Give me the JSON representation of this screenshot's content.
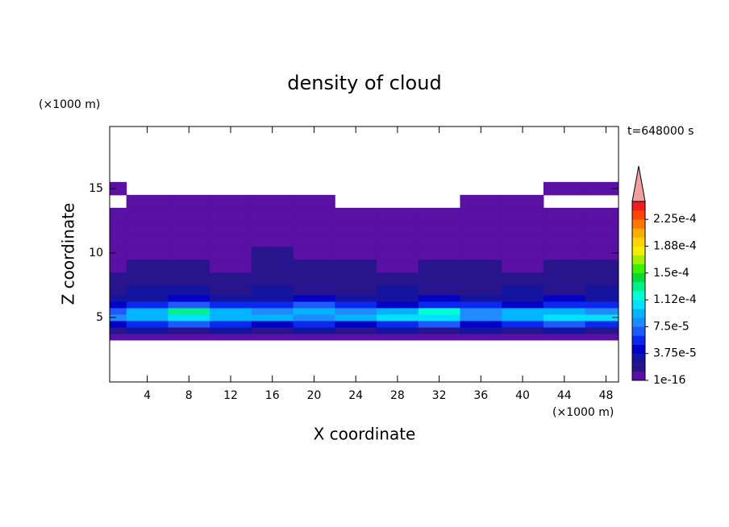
{
  "chart_data": {
    "type": "contour",
    "title": "density of cloud",
    "xlabel": "X coordinate",
    "ylabel": "Z coordinate",
    "x_unit": "(×1000 m)",
    "y_unit": "(×1000 m)",
    "time_label": "t=648000 s",
    "x": [
      0,
      4,
      8,
      12,
      16,
      20,
      24,
      28,
      32,
      36,
      40,
      44,
      48
    ],
    "z": [
      3.5,
      4,
      4.5,
      5,
      5.5,
      6,
      6.5,
      7,
      8,
      9,
      10,
      11,
      12,
      13,
      14,
      15
    ],
    "values": [
      [
        5e-06,
        5e-06,
        5e-06,
        5e-06,
        5e-06,
        5e-06,
        5e-06,
        5e-06,
        5e-06,
        5e-06,
        5e-06,
        5e-06,
        5e-06
      ],
      [
        1.8e-05,
        3e-05,
        1.8e-05,
        3e-05,
        1.8e-05,
        3e-05,
        1.8e-05,
        3e-05,
        1.8e-05,
        3e-05,
        1.8e-05,
        3e-05,
        1.8e-05
      ],
      [
        4.4e-05,
        5.6e-05,
        6.8e-05,
        5.6e-05,
        4.4e-05,
        5.6e-05,
        4.4e-05,
        5.6e-05,
        6.8e-05,
        4.4e-05,
        5.6e-05,
        6.8e-05,
        5.6e-05
      ],
      [
        8e-05,
        9.3e-05,
        0.000106,
        9.3e-05,
        9.3e-05,
        8e-05,
        9.3e-05,
        0.000106,
        0.000106,
        8e-05,
        9.3e-05,
        0.000106,
        0.000106
      ],
      [
        6.8e-05,
        9.3e-05,
        0.00013,
        9.3e-05,
        8e-05,
        9.3e-05,
        8e-05,
        9.3e-05,
        0.000118,
        8e-05,
        9.3e-05,
        9.3e-05,
        8e-05
      ],
      [
        4.4e-05,
        5.6e-05,
        6.8e-05,
        5.6e-05,
        5.6e-05,
        6.8e-05,
        5.6e-05,
        4.4e-05,
        5.6e-05,
        5.6e-05,
        4.4e-05,
        5.6e-05,
        5.6e-05
      ],
      [
        3e-05,
        3e-05,
        4.4e-05,
        3e-05,
        3e-05,
        4.4e-05,
        3e-05,
        3e-05,
        4.4e-05,
        3e-05,
        3e-05,
        4.4e-05,
        3e-05
      ],
      [
        1.8e-05,
        3e-05,
        3e-05,
        1.8e-05,
        3e-05,
        1.8e-05,
        1.8e-05,
        3e-05,
        1.8e-05,
        1.8e-05,
        3e-05,
        1.8e-05,
        3e-05
      ],
      [
        1.8e-05,
        1.8e-05,
        1.8e-05,
        1.8e-05,
        1.8e-05,
        1.8e-05,
        1.8e-05,
        1.8e-05,
        1.8e-05,
        1.8e-05,
        1.8e-05,
        1.8e-05,
        1.8e-05
      ],
      [
        5e-06,
        1.8e-05,
        1.8e-05,
        5e-06,
        1.8e-05,
        1.8e-05,
        1.8e-05,
        5e-06,
        1.8e-05,
        1.8e-05,
        5e-06,
        1.8e-05,
        1.8e-05
      ],
      [
        5e-06,
        5e-06,
        5e-06,
        5e-06,
        1.8e-05,
        5e-06,
        5e-06,
        5e-06,
        5e-06,
        5e-06,
        5e-06,
        5e-06,
        5e-06
      ],
      [
        5e-06,
        5e-06,
        5e-06,
        5e-06,
        5e-06,
        5e-06,
        5e-06,
        5e-06,
        5e-06,
        5e-06,
        5e-06,
        5e-06,
        5e-06
      ],
      [
        5e-06,
        5e-06,
        5e-06,
        5e-06,
        5e-06,
        5e-06,
        5e-06,
        5e-06,
        5e-06,
        5e-06,
        5e-06,
        5e-06,
        5e-06
      ],
      [
        5e-06,
        5e-06,
        5e-06,
        5e-06,
        5e-06,
        5e-06,
        5e-06,
        5e-06,
        5e-06,
        5e-06,
        5e-06,
        5e-06,
        5e-06
      ],
      [
        null,
        5e-06,
        5e-06,
        5e-06,
        5e-06,
        5e-06,
        null,
        null,
        null,
        5e-06,
        5e-06,
        null,
        null
      ],
      [
        5e-06,
        null,
        null,
        null,
        null,
        null,
        null,
        null,
        null,
        null,
        null,
        5e-06,
        5e-06
      ]
    ],
    "xlim": [
      0.4,
      49.2
    ],
    "ylim": [
      0,
      19.8
    ],
    "xticks": [
      4,
      8,
      12,
      16,
      20,
      24,
      28,
      32,
      36,
      40,
      44,
      48
    ],
    "yticks": [
      5,
      10,
      15
    ],
    "levels": [
      1e-16,
      1.25e-05,
      2.5e-05,
      3.75e-05,
      5e-05,
      6.25e-05,
      7.5e-05,
      8.75e-05,
      0.0001,
      0.0001125,
      0.000125,
      0.0001375,
      0.00015,
      0.0001625,
      0.000175,
      0.0001875,
      0.0002,
      0.0002125,
      0.000225,
      0.0002375,
      0.00025
    ],
    "colors": [
      "#5a0fa5",
      "#28148c",
      "#1414a0",
      "#0000c8",
      "#0a28f0",
      "#1e5aff",
      "#1e8cff",
      "#00b4ff",
      "#00e1ff",
      "#00ffd2",
      "#00f08c",
      "#00dc3c",
      "#3cf000",
      "#a0f000",
      "#f0f000",
      "#ffd200",
      "#ffaa00",
      "#ff7800",
      "#ff4600",
      "#f01e1e"
    ],
    "extend_color": "#f0a0a0",
    "colorbar_ticks": [
      {
        "value": 1e-16,
        "label": "1e-16"
      },
      {
        "value": 3.75e-05,
        "label": "3.75e-5"
      },
      {
        "value": 7.5e-05,
        "label": "7.5e-5"
      },
      {
        "value": 0.0001125,
        "label": "1.12e-4"
      },
      {
        "value": 0.00015,
        "label": "1.5e-4"
      },
      {
        "value": 0.0001875,
        "label": "1.88e-4"
      },
      {
        "value": 0.000225,
        "label": "2.25e-4"
      }
    ]
  }
}
